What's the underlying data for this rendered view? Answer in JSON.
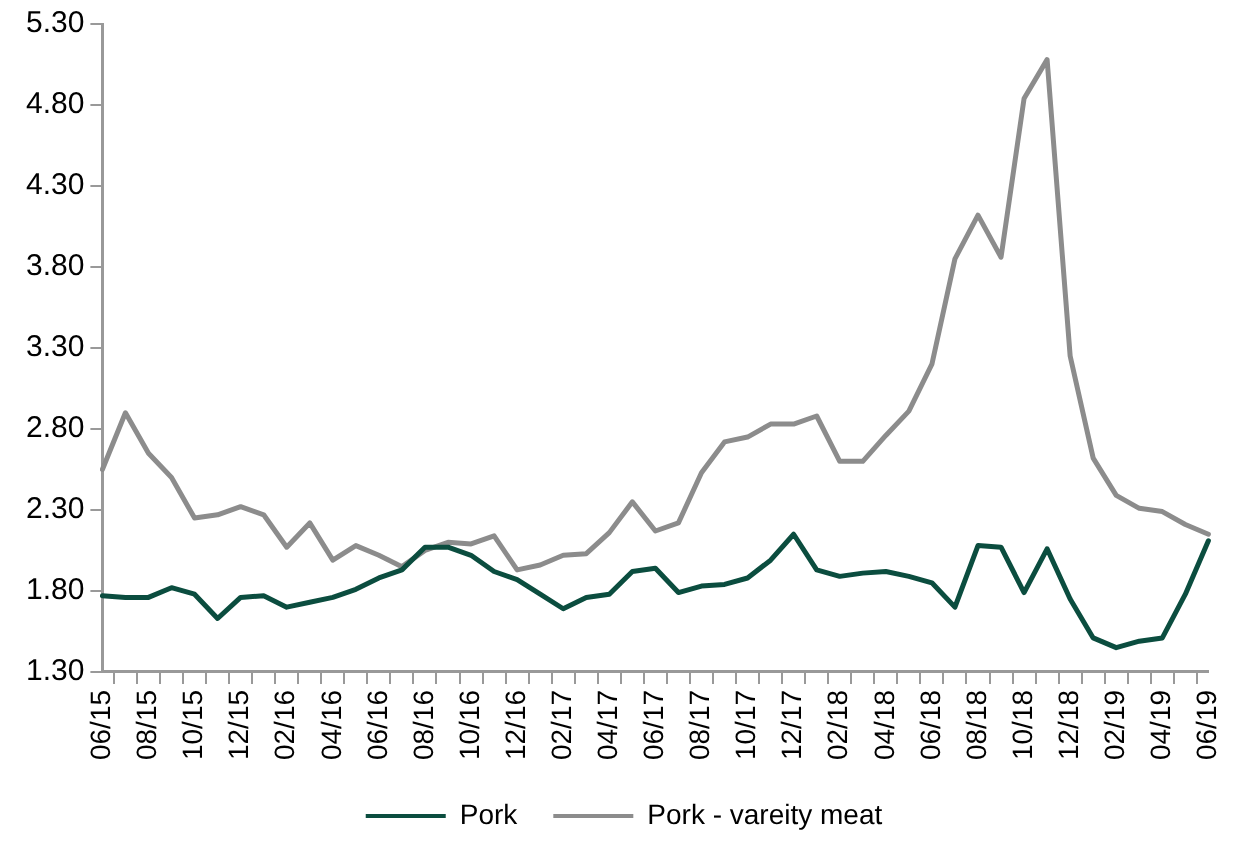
{
  "chart_data": {
    "type": "line",
    "categories": [
      "06/15",
      null,
      "08/15",
      null,
      "10/15",
      null,
      "12/15",
      null,
      "02/16",
      null,
      "04/16",
      null,
      "06/16",
      null,
      "08/16",
      null,
      "10/16",
      null,
      "12/16",
      null,
      "02/17",
      null,
      "04/17",
      null,
      "06/17",
      null,
      "08/17",
      null,
      "10/17",
      null,
      "12/17",
      null,
      "02/18",
      null,
      "04/18",
      null,
      "06/18",
      null,
      "08/18",
      null,
      "10/18",
      null,
      "12/18",
      null,
      "02/19",
      null,
      "04/19",
      null,
      "06/19"
    ],
    "series": [
      {
        "name": "Pork",
        "color": "#0b4d3f",
        "values": [
          1.77,
          1.76,
          1.76,
          1.82,
          1.78,
          1.63,
          1.76,
          1.77,
          1.7,
          1.73,
          1.76,
          1.81,
          1.88,
          1.93,
          2.07,
          2.07,
          2.02,
          1.92,
          1.87,
          1.78,
          1.69,
          1.76,
          1.78,
          1.92,
          1.94,
          1.79,
          1.83,
          1.84,
          1.88,
          1.99,
          2.15,
          1.93,
          1.89,
          1.91,
          1.92,
          1.89,
          1.85,
          1.7,
          2.08,
          2.07,
          1.79,
          2.06,
          1.75,
          1.51,
          1.45,
          1.49,
          1.51,
          1.78,
          2.11
        ]
      },
      {
        "name": "Pork - vareity meat",
        "color": "#8c8c8c",
        "values": [
          2.55,
          2.9,
          2.65,
          2.5,
          2.25,
          2.27,
          2.32,
          2.27,
          2.07,
          2.22,
          1.99,
          2.08,
          2.02,
          1.95,
          2.05,
          2.1,
          2.09,
          2.14,
          1.93,
          1.96,
          2.02,
          2.03,
          2.16,
          2.35,
          2.17,
          2.22,
          2.53,
          2.72,
          2.75,
          2.83,
          2.83,
          2.88,
          2.6,
          2.6,
          2.76,
          2.91,
          3.2,
          3.85,
          4.12,
          3.86,
          4.84,
          5.08,
          3.25,
          2.62,
          2.39,
          2.31,
          2.29,
          2.21,
          2.15
        ]
      }
    ],
    "ylim": [
      1.3,
      5.3
    ],
    "yticks": [
      {
        "value": 1.3,
        "label": "1.30"
      },
      {
        "value": 1.8,
        "label": "1.80"
      },
      {
        "value": 2.3,
        "label": "2.30"
      },
      {
        "value": 2.8,
        "label": "2.80"
      },
      {
        "value": 3.3,
        "label": "3.30"
      },
      {
        "value": 3.8,
        "label": "3.80"
      },
      {
        "value": 4.3,
        "label": "4.30"
      },
      {
        "value": 4.8,
        "label": "4.80"
      },
      {
        "value": 5.3,
        "label": "5.30"
      }
    ],
    "grid": false,
    "legend": "bottom",
    "marker": "none",
    "line_style": "solid"
  }
}
